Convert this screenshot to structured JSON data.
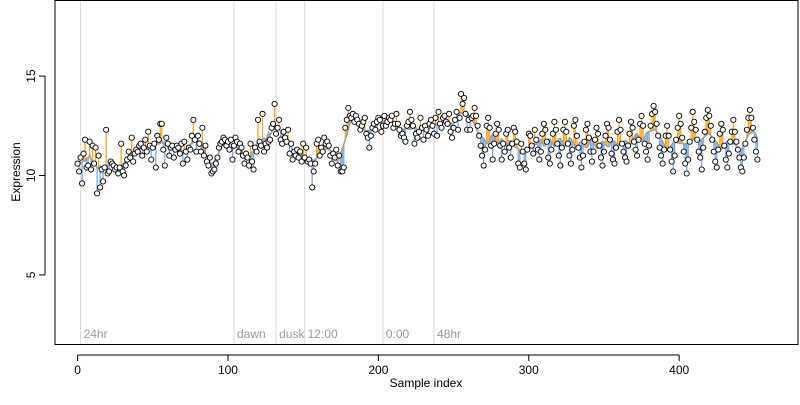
{
  "chart_data": {
    "type": "scatter",
    "title": "",
    "xlabel": "Sample index",
    "ylabel": "Expression",
    "xlim": [
      -15,
      479
    ],
    "ylim": [
      1.5,
      18.8
    ],
    "x_ticks": [
      0,
      100,
      200,
      300,
      400
    ],
    "y_ticks": [
      5,
      10,
      15
    ],
    "grid": false,
    "legend": "none",
    "baseline_window": 9,
    "colors": {
      "above_stem": "#F5A623",
      "below_stem": "#7FA7E0",
      "smooth_line": "#A0A0A0",
      "point_fill": "#FFFFFF",
      "point_stroke": "#000000",
      "marker_line": "#D9D9D9",
      "marker_text": "#9A9A9A"
    },
    "markers": [
      {
        "x": 2,
        "label": "24hr"
      },
      {
        "x": 104,
        "label": "dawn"
      },
      {
        "x": 132,
        "label": "dusk"
      },
      {
        "x": 151,
        "label": "12:00"
      },
      {
        "x": 203,
        "label": "0:00"
      },
      {
        "x": 237,
        "label": "48hr"
      }
    ],
    "series": [
      {
        "y": [
          10.6,
          10.2,
          10.9,
          9.6,
          11.1,
          11.8,
          10.4,
          10.5,
          11.7,
          10.3,
          11.5,
          10.6,
          11.4,
          9.1,
          11.0,
          9.4,
          10.3,
          9.7,
          10.4,
          12.3,
          10.1,
          10.2,
          10.7,
          10.6,
          10.5,
          10.3,
          10.4,
          10.1,
          10.4,
          11.6,
          10.2,
          10.0,
          10.5,
          10.8,
          11.2,
          10.9,
          11.9,
          10.7,
          11.1,
          11.3,
          11.2,
          11.5,
          11.6,
          11.0,
          11.4,
          11.8,
          11.2,
          12.2,
          11.5,
          10.8,
          11.4,
          11.6,
          10.4,
          12.0,
          11.8,
          12.6,
          12.6,
          11.3,
          10.5,
          11.9,
          11.6,
          11.0,
          11.4,
          11.5,
          10.9,
          11.3,
          11.5,
          11.4,
          11.1,
          11.6,
          10.6,
          11.7,
          11.2,
          10.8,
          11.4,
          11.3,
          12.0,
          12.8,
          11.8,
          11.2,
          12.0,
          11.6,
          11.2,
          12.4,
          11.0,
          11.5,
          10.7,
          10.5,
          10.9,
          10.1,
          10.2,
          10.3,
          10.6,
          10.9,
          11.4,
          11.6,
          11.7,
          11.9,
          11.8,
          11.5,
          11.7,
          11.3,
          11.8,
          10.8,
          11.5,
          11.9,
          11.7,
          11.2,
          11.6,
          11.4,
          11.0,
          10.6,
          11.1,
          10.9,
          10.5,
          11.6,
          10.7,
          10.3,
          11.4,
          11.2,
          12.8,
          11.7,
          11.5,
          13.1,
          11.2,
          11.6,
          11.4,
          11.7,
          11.8,
          12.4,
          12.6,
          13.6,
          12.1,
          12.4,
          12.8,
          11.8,
          11.6,
          12.2,
          11.9,
          11.7,
          12.3,
          11.1,
          11.6,
          10.8,
          11.2,
          11.0,
          11.3,
          10.9,
          11.2,
          10.7,
          11.6,
          10.9,
          11.4,
          10.7,
          10.8,
          10.6,
          9.4,
          10.2,
          10.6,
          11.6,
          11.8,
          11.0,
          11.4,
          11.2,
          11.9,
          11.6,
          11.7,
          11.5,
          11.0,
          10.6,
          11.1,
          10.9,
          11.3,
          10.5,
          11.0,
          10.2,
          10.2,
          10.4,
          12.4,
          12.8,
          13.4,
          13.0,
          12.9,
          13.1,
          12.7,
          13.0,
          12.8,
          12.6,
          12.3,
          12.5,
          12.7,
          12.9,
          12.1,
          11.9,
          11.4,
          12.0,
          12.4,
          12.6,
          12.3,
          12.7,
          12.9,
          12.8,
          12.2,
          12.5,
          13.0,
          12.5,
          12.7,
          12.9,
          12.8,
          13.0,
          12.4,
          12.6,
          13.1,
          12.6,
          12.3,
          12.0,
          12.1,
          11.9,
          11.7,
          12.5,
          12.7,
          13.2,
          12.8,
          12.5,
          11.6,
          12.1,
          11.9,
          12.2,
          12.9,
          12.4,
          11.8,
          12.5,
          12.3,
          12.0,
          12.6,
          12.8,
          12.5,
          12.1,
          12.9,
          12.0,
          13.2,
          12.6,
          12.4,
          12.9,
          13.0,
          12.7,
          12.6,
          13.1,
          12.2,
          11.9,
          12.4,
          12.8,
          13.2,
          12.3,
          12.9,
          14.1,
          13.6,
          13.9,
          13.1,
          12.3,
          12.8,
          12.3,
          12.9,
          13.0,
          13.4,
          13.0,
          12.5,
          12.0,
          11.5,
          11.0,
          10.5,
          11.3,
          12.5,
          12.9,
          12.4,
          11.5,
          10.8,
          11.6,
          12.1,
          12.6,
          12.3,
          11.5,
          10.8,
          11.6,
          11.2,
          12.1,
          12.3,
          11.4,
          10.9,
          11.6,
          12.4,
          12.2,
          11.7,
          10.6,
          10.4,
          11.6,
          11.2,
          10.6,
          10.3,
          11.3,
          12.1,
          12.0,
          11.5,
          11.1,
          12.3,
          11.8,
          11.3,
          10.8,
          11.2,
          12.1,
          12.6,
          12.3,
          11.7,
          10.9,
          10.6,
          11.3,
          12.1,
          12.7,
          12.3,
          11.6,
          11.0,
          10.5,
          11.4,
          12.3,
          12.7,
          12.2,
          11.6,
          11.0,
          10.6,
          11.3,
          12.5,
          12.8,
          12.0,
          11.4,
          10.9,
          10.4,
          11.0,
          11.7,
          12.3,
          12.6,
          11.9,
          11.2,
          10.7,
          11.2,
          11.8,
          12.4,
          12.1,
          11.5,
          10.9,
          10.5,
          11.2,
          12.0,
          12.6,
          12.4,
          11.8,
          11.1,
          10.8,
          10.6,
          11.4,
          12.2,
          12.8,
          12.3,
          11.6,
          11.2,
          10.9,
          10.7,
          11.5,
          12.1,
          12.7,
          12.4,
          11.7,
          11.3,
          11.0,
          11.8,
          12.6,
          13.0,
          12.5,
          11.6,
          11.2,
          10.8,
          11.5,
          12.5,
          13.1,
          13.5,
          13.2,
          12.6,
          12.0,
          11.4,
          11.0,
          10.6,
          11.3,
          12.0,
          12.5,
          12.0,
          11.3,
          10.7,
          10.2,
          11.0,
          11.8,
          12.4,
          13.0,
          12.6,
          11.9,
          11.2,
          10.6,
          10.1,
          10.8,
          11.7,
          12.4,
          13.2,
          12.7,
          12.3,
          11.8,
          11.2,
          10.9,
          10.3,
          11.4,
          12.2,
          12.9,
          13.3,
          13.0,
          12.5,
          11.8,
          11.2,
          10.7,
          10.4,
          11.3,
          12.1,
          12.6,
          12.3,
          11.5,
          10.8,
          10.4,
          11.1,
          11.7,
          12.2,
          12.8,
          12.2,
          11.7,
          11.3,
          10.9,
          10.4,
          10.2,
          10.9,
          11.6,
          12.3,
          12.9,
          13.3,
          12.9,
          12.4,
          11.8,
          11.2,
          10.8
        ]
      }
    ]
  }
}
